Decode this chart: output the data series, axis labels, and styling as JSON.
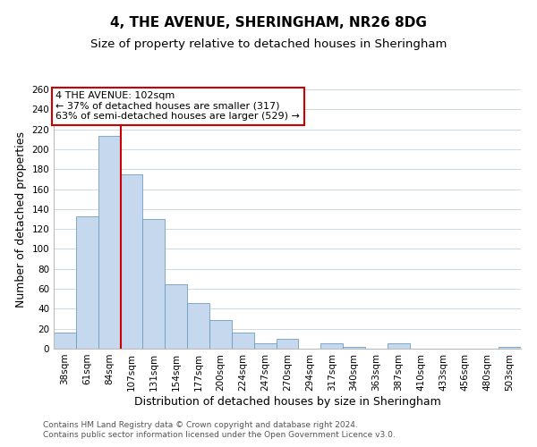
{
  "title": "4, THE AVENUE, SHERINGHAM, NR26 8DG",
  "subtitle": "Size of property relative to detached houses in Sheringham",
  "xlabel": "Distribution of detached houses by size in Sheringham",
  "ylabel": "Number of detached properties",
  "bin_labels": [
    "38sqm",
    "61sqm",
    "84sqm",
    "107sqm",
    "131sqm",
    "154sqm",
    "177sqm",
    "200sqm",
    "224sqm",
    "247sqm",
    "270sqm",
    "294sqm",
    "317sqm",
    "340sqm",
    "363sqm",
    "387sqm",
    "410sqm",
    "433sqm",
    "456sqm",
    "480sqm",
    "503sqm"
  ],
  "bar_heights": [
    16,
    133,
    213,
    175,
    130,
    65,
    46,
    29,
    16,
    5,
    10,
    0,
    5,
    2,
    0,
    5,
    0,
    0,
    0,
    0,
    2
  ],
  "bar_color": "#c5d8ee",
  "bar_edge_color": "#6e9ec0",
  "vline_x": 3,
  "vline_color": "#cc0000",
  "annotation_text": "4 THE AVENUE: 102sqm\n← 37% of detached houses are smaller (317)\n63% of semi-detached houses are larger (529) →",
  "annotation_box_color": "#ffffff",
  "annotation_box_edge": "#cc0000",
  "ylim": [
    0,
    260
  ],
  "yticks": [
    0,
    20,
    40,
    60,
    80,
    100,
    120,
    140,
    160,
    180,
    200,
    220,
    240,
    260
  ],
  "footer_line1": "Contains HM Land Registry data © Crown copyright and database right 2024.",
  "footer_line2": "Contains public sector information licensed under the Open Government Licence v3.0.",
  "bg_color": "#ffffff",
  "grid_color": "#ccd9e8",
  "title_fontsize": 11,
  "subtitle_fontsize": 9.5,
  "label_fontsize": 9,
  "tick_fontsize": 7.5,
  "footer_fontsize": 6.5
}
